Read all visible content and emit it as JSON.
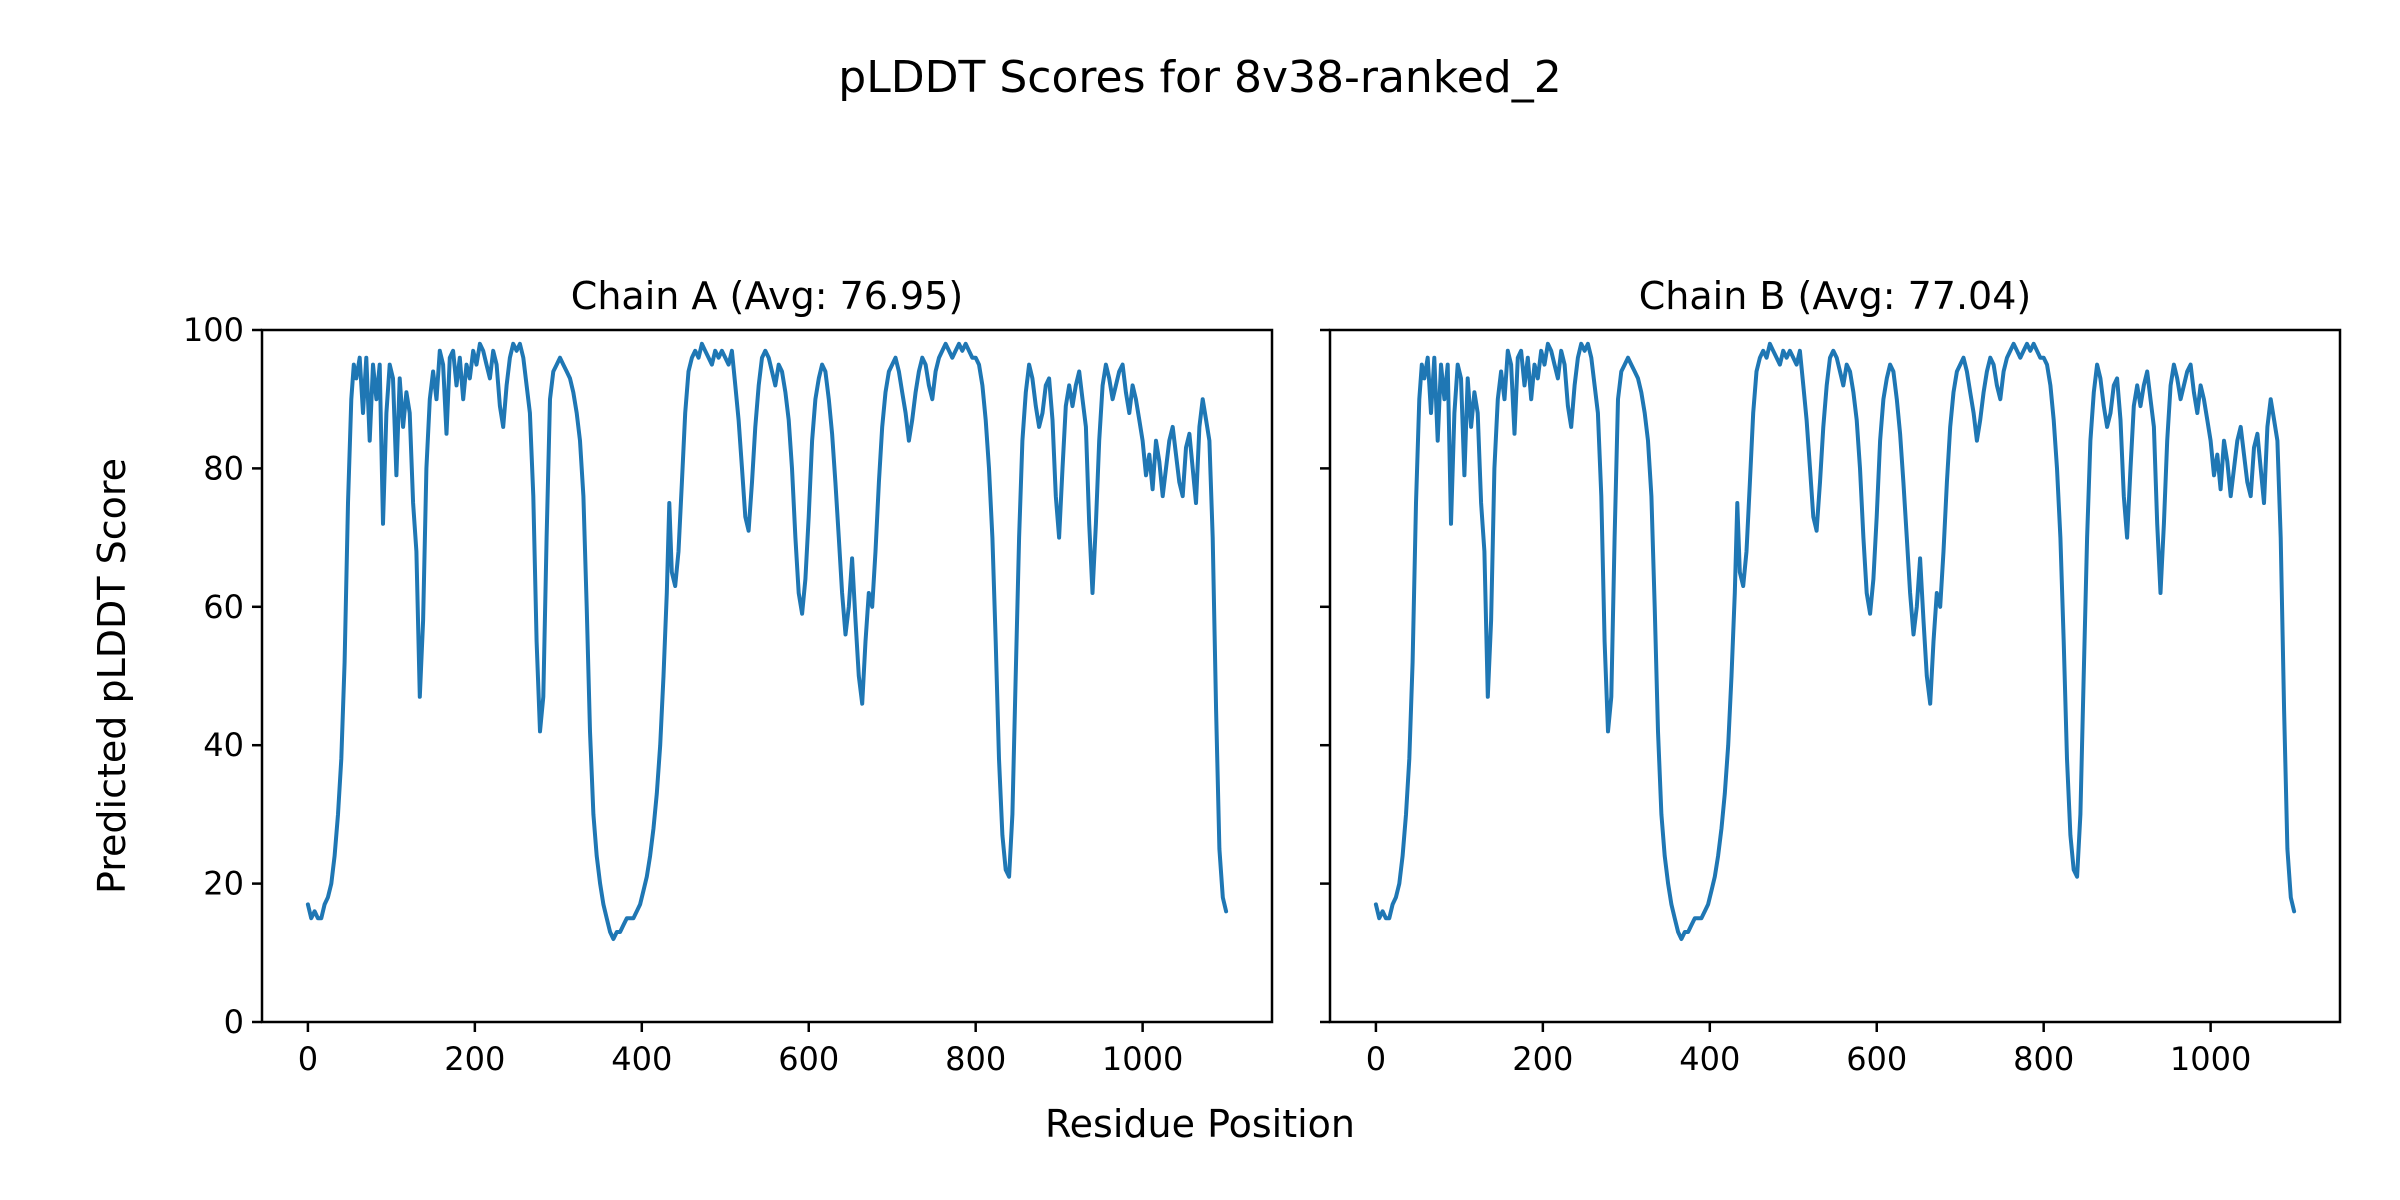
{
  "chart_data": {
    "type": "line",
    "title": "pLDDT Scores for 8v38-ranked_2",
    "xlabel": "Residue Position",
    "ylabel": "Predicted pLDDT Score",
    "xlim": [
      -55,
      1155
    ],
    "ylim": [
      0,
      100
    ],
    "x_ticks": [
      0,
      200,
      400,
      600,
      800,
      1000
    ],
    "y_ticks": [
      0,
      20,
      40,
      60,
      80,
      100
    ],
    "grid": false,
    "line_color": "#1f77b4",
    "background": "#ffffff",
    "subplots": [
      {
        "title": "Chain A (Avg: 76.95)",
        "series_name": "Chain A",
        "avg": 76.95
      },
      {
        "title": "Chain B (Avg: 77.04)",
        "series_name": "Chain B",
        "avg": 77.04
      }
    ],
    "points_apply_to": "both subplots (traces visually identical)",
    "points": [
      [
        0,
        17
      ],
      [
        4,
        15
      ],
      [
        8,
        16
      ],
      [
        12,
        15
      ],
      [
        16,
        15
      ],
      [
        20,
        17
      ],
      [
        24,
        18
      ],
      [
        28,
        20
      ],
      [
        32,
        24
      ],
      [
        36,
        30
      ],
      [
        40,
        38
      ],
      [
        44,
        52
      ],
      [
        48,
        75
      ],
      [
        52,
        90
      ],
      [
        55,
        95
      ],
      [
        58,
        93
      ],
      [
        62,
        96
      ],
      [
        66,
        88
      ],
      [
        70,
        96
      ],
      [
        74,
        84
      ],
      [
        78,
        95
      ],
      [
        82,
        90
      ],
      [
        86,
        95
      ],
      [
        90,
        72
      ],
      [
        94,
        88
      ],
      [
        98,
        95
      ],
      [
        102,
        93
      ],
      [
        106,
        79
      ],
      [
        110,
        93
      ],
      [
        114,
        86
      ],
      [
        118,
        91
      ],
      [
        122,
        88
      ],
      [
        126,
        75
      ],
      [
        130,
        68
      ],
      [
        134,
        47
      ],
      [
        138,
        58
      ],
      [
        142,
        80
      ],
      [
        146,
        90
      ],
      [
        150,
        94
      ],
      [
        154,
        90
      ],
      [
        158,
        97
      ],
      [
        162,
        95
      ],
      [
        166,
        85
      ],
      [
        170,
        96
      ],
      [
        174,
        97
      ],
      [
        178,
        92
      ],
      [
        182,
        96
      ],
      [
        186,
        90
      ],
      [
        190,
        95
      ],
      [
        194,
        93
      ],
      [
        198,
        97
      ],
      [
        202,
        95
      ],
      [
        206,
        98
      ],
      [
        210,
        97
      ],
      [
        214,
        95
      ],
      [
        218,
        93
      ],
      [
        222,
        97
      ],
      [
        226,
        95
      ],
      [
        230,
        89
      ],
      [
        234,
        86
      ],
      [
        238,
        92
      ],
      [
        242,
        96
      ],
      [
        246,
        98
      ],
      [
        250,
        97
      ],
      [
        254,
        98
      ],
      [
        258,
        96
      ],
      [
        262,
        92
      ],
      [
        266,
        88
      ],
      [
        270,
        76
      ],
      [
        274,
        55
      ],
      [
        278,
        42
      ],
      [
        282,
        47
      ],
      [
        286,
        70
      ],
      [
        290,
        90
      ],
      [
        294,
        94
      ],
      [
        298,
        95
      ],
      [
        302,
        96
      ],
      [
        306,
        95
      ],
      [
        310,
        94
      ],
      [
        314,
        93
      ],
      [
        318,
        91
      ],
      [
        322,
        88
      ],
      [
        326,
        84
      ],
      [
        330,
        76
      ],
      [
        334,
        60
      ],
      [
        338,
        42
      ],
      [
        342,
        30
      ],
      [
        346,
        24
      ],
      [
        350,
        20
      ],
      [
        354,
        17
      ],
      [
        358,
        15
      ],
      [
        362,
        13
      ],
      [
        366,
        12
      ],
      [
        370,
        13
      ],
      [
        374,
        13
      ],
      [
        378,
        14
      ],
      [
        382,
        15
      ],
      [
        386,
        15
      ],
      [
        390,
        15
      ],
      [
        394,
        16
      ],
      [
        398,
        17
      ],
      [
        402,
        19
      ],
      [
        406,
        21
      ],
      [
        410,
        24
      ],
      [
        414,
        28
      ],
      [
        418,
        33
      ],
      [
        422,
        40
      ],
      [
        426,
        50
      ],
      [
        430,
        62
      ],
      [
        433,
        75
      ],
      [
        436,
        65
      ],
      [
        440,
        63
      ],
      [
        444,
        68
      ],
      [
        448,
        78
      ],
      [
        452,
        88
      ],
      [
        456,
        94
      ],
      [
        460,
        96
      ],
      [
        464,
        97
      ],
      [
        468,
        96
      ],
      [
        472,
        98
      ],
      [
        476,
        97
      ],
      [
        480,
        96
      ],
      [
        484,
        95
      ],
      [
        488,
        97
      ],
      [
        492,
        96
      ],
      [
        496,
        97
      ],
      [
        500,
        96
      ],
      [
        504,
        95
      ],
      [
        508,
        97
      ],
      [
        512,
        92
      ],
      [
        516,
        87
      ],
      [
        520,
        80
      ],
      [
        524,
        73
      ],
      [
        528,
        71
      ],
      [
        532,
        78
      ],
      [
        536,
        86
      ],
      [
        540,
        92
      ],
      [
        544,
        96
      ],
      [
        548,
        97
      ],
      [
        552,
        96
      ],
      [
        556,
        94
      ],
      [
        560,
        92
      ],
      [
        564,
        95
      ],
      [
        568,
        94
      ],
      [
        572,
        91
      ],
      [
        576,
        87
      ],
      [
        580,
        80
      ],
      [
        584,
        70
      ],
      [
        588,
        62
      ],
      [
        592,
        59
      ],
      [
        596,
        64
      ],
      [
        600,
        73
      ],
      [
        604,
        84
      ],
      [
        608,
        90
      ],
      [
        612,
        93
      ],
      [
        616,
        95
      ],
      [
        620,
        94
      ],
      [
        624,
        90
      ],
      [
        628,
        85
      ],
      [
        632,
        78
      ],
      [
        636,
        70
      ],
      [
        640,
        62
      ],
      [
        644,
        56
      ],
      [
        648,
        60
      ],
      [
        652,
        67
      ],
      [
        656,
        58
      ],
      [
        660,
        50
      ],
      [
        664,
        46
      ],
      [
        668,
        55
      ],
      [
        672,
        62
      ],
      [
        676,
        60
      ],
      [
        680,
        68
      ],
      [
        684,
        78
      ],
      [
        688,
        86
      ],
      [
        692,
        91
      ],
      [
        696,
        94
      ],
      [
        700,
        95
      ],
      [
        704,
        96
      ],
      [
        708,
        94
      ],
      [
        712,
        91
      ],
      [
        716,
        88
      ],
      [
        720,
        84
      ],
      [
        724,
        87
      ],
      [
        728,
        91
      ],
      [
        732,
        94
      ],
      [
        736,
        96
      ],
      [
        740,
        95
      ],
      [
        744,
        92
      ],
      [
        748,
        90
      ],
      [
        752,
        94
      ],
      [
        756,
        96
      ],
      [
        760,
        97
      ],
      [
        764,
        98
      ],
      [
        768,
        97
      ],
      [
        772,
        96
      ],
      [
        776,
        97
      ],
      [
        780,
        98
      ],
      [
        784,
        97
      ],
      [
        788,
        98
      ],
      [
        792,
        97
      ],
      [
        796,
        96
      ],
      [
        800,
        96
      ],
      [
        804,
        95
      ],
      [
        808,
        92
      ],
      [
        812,
        87
      ],
      [
        816,
        80
      ],
      [
        820,
        70
      ],
      [
        824,
        55
      ],
      [
        828,
        38
      ],
      [
        832,
        27
      ],
      [
        836,
        22
      ],
      [
        840,
        21
      ],
      [
        844,
        30
      ],
      [
        848,
        50
      ],
      [
        852,
        70
      ],
      [
        856,
        84
      ],
      [
        860,
        91
      ],
      [
        864,
        95
      ],
      [
        868,
        93
      ],
      [
        872,
        89
      ],
      [
        876,
        86
      ],
      [
        880,
        88
      ],
      [
        884,
        92
      ],
      [
        888,
        93
      ],
      [
        892,
        87
      ],
      [
        896,
        76
      ],
      [
        900,
        70
      ],
      [
        904,
        80
      ],
      [
        908,
        89
      ],
      [
        912,
        92
      ],
      [
        916,
        89
      ],
      [
        920,
        92
      ],
      [
        924,
        94
      ],
      [
        928,
        90
      ],
      [
        932,
        86
      ],
      [
        936,
        72
      ],
      [
        940,
        62
      ],
      [
        944,
        72
      ],
      [
        948,
        84
      ],
      [
        952,
        92
      ],
      [
        956,
        95
      ],
      [
        960,
        93
      ],
      [
        964,
        90
      ],
      [
        968,
        92
      ],
      [
        972,
        94
      ],
      [
        976,
        95
      ],
      [
        980,
        91
      ],
      [
        984,
        88
      ],
      [
        988,
        92
      ],
      [
        992,
        90
      ],
      [
        996,
        87
      ],
      [
        1000,
        84
      ],
      [
        1004,
        79
      ],
      [
        1008,
        82
      ],
      [
        1012,
        77
      ],
      [
        1016,
        84
      ],
      [
        1020,
        81
      ],
      [
        1024,
        76
      ],
      [
        1028,
        80
      ],
      [
        1032,
        84
      ],
      [
        1036,
        86
      ],
      [
        1040,
        82
      ],
      [
        1044,
        78
      ],
      [
        1048,
        76
      ],
      [
        1052,
        83
      ],
      [
        1056,
        85
      ],
      [
        1060,
        80
      ],
      [
        1064,
        75
      ],
      [
        1068,
        86
      ],
      [
        1072,
        90
      ],
      [
        1076,
        87
      ],
      [
        1080,
        84
      ],
      [
        1084,
        70
      ],
      [
        1088,
        45
      ],
      [
        1092,
        25
      ],
      [
        1096,
        18
      ],
      [
        1100,
        16
      ]
    ]
  }
}
